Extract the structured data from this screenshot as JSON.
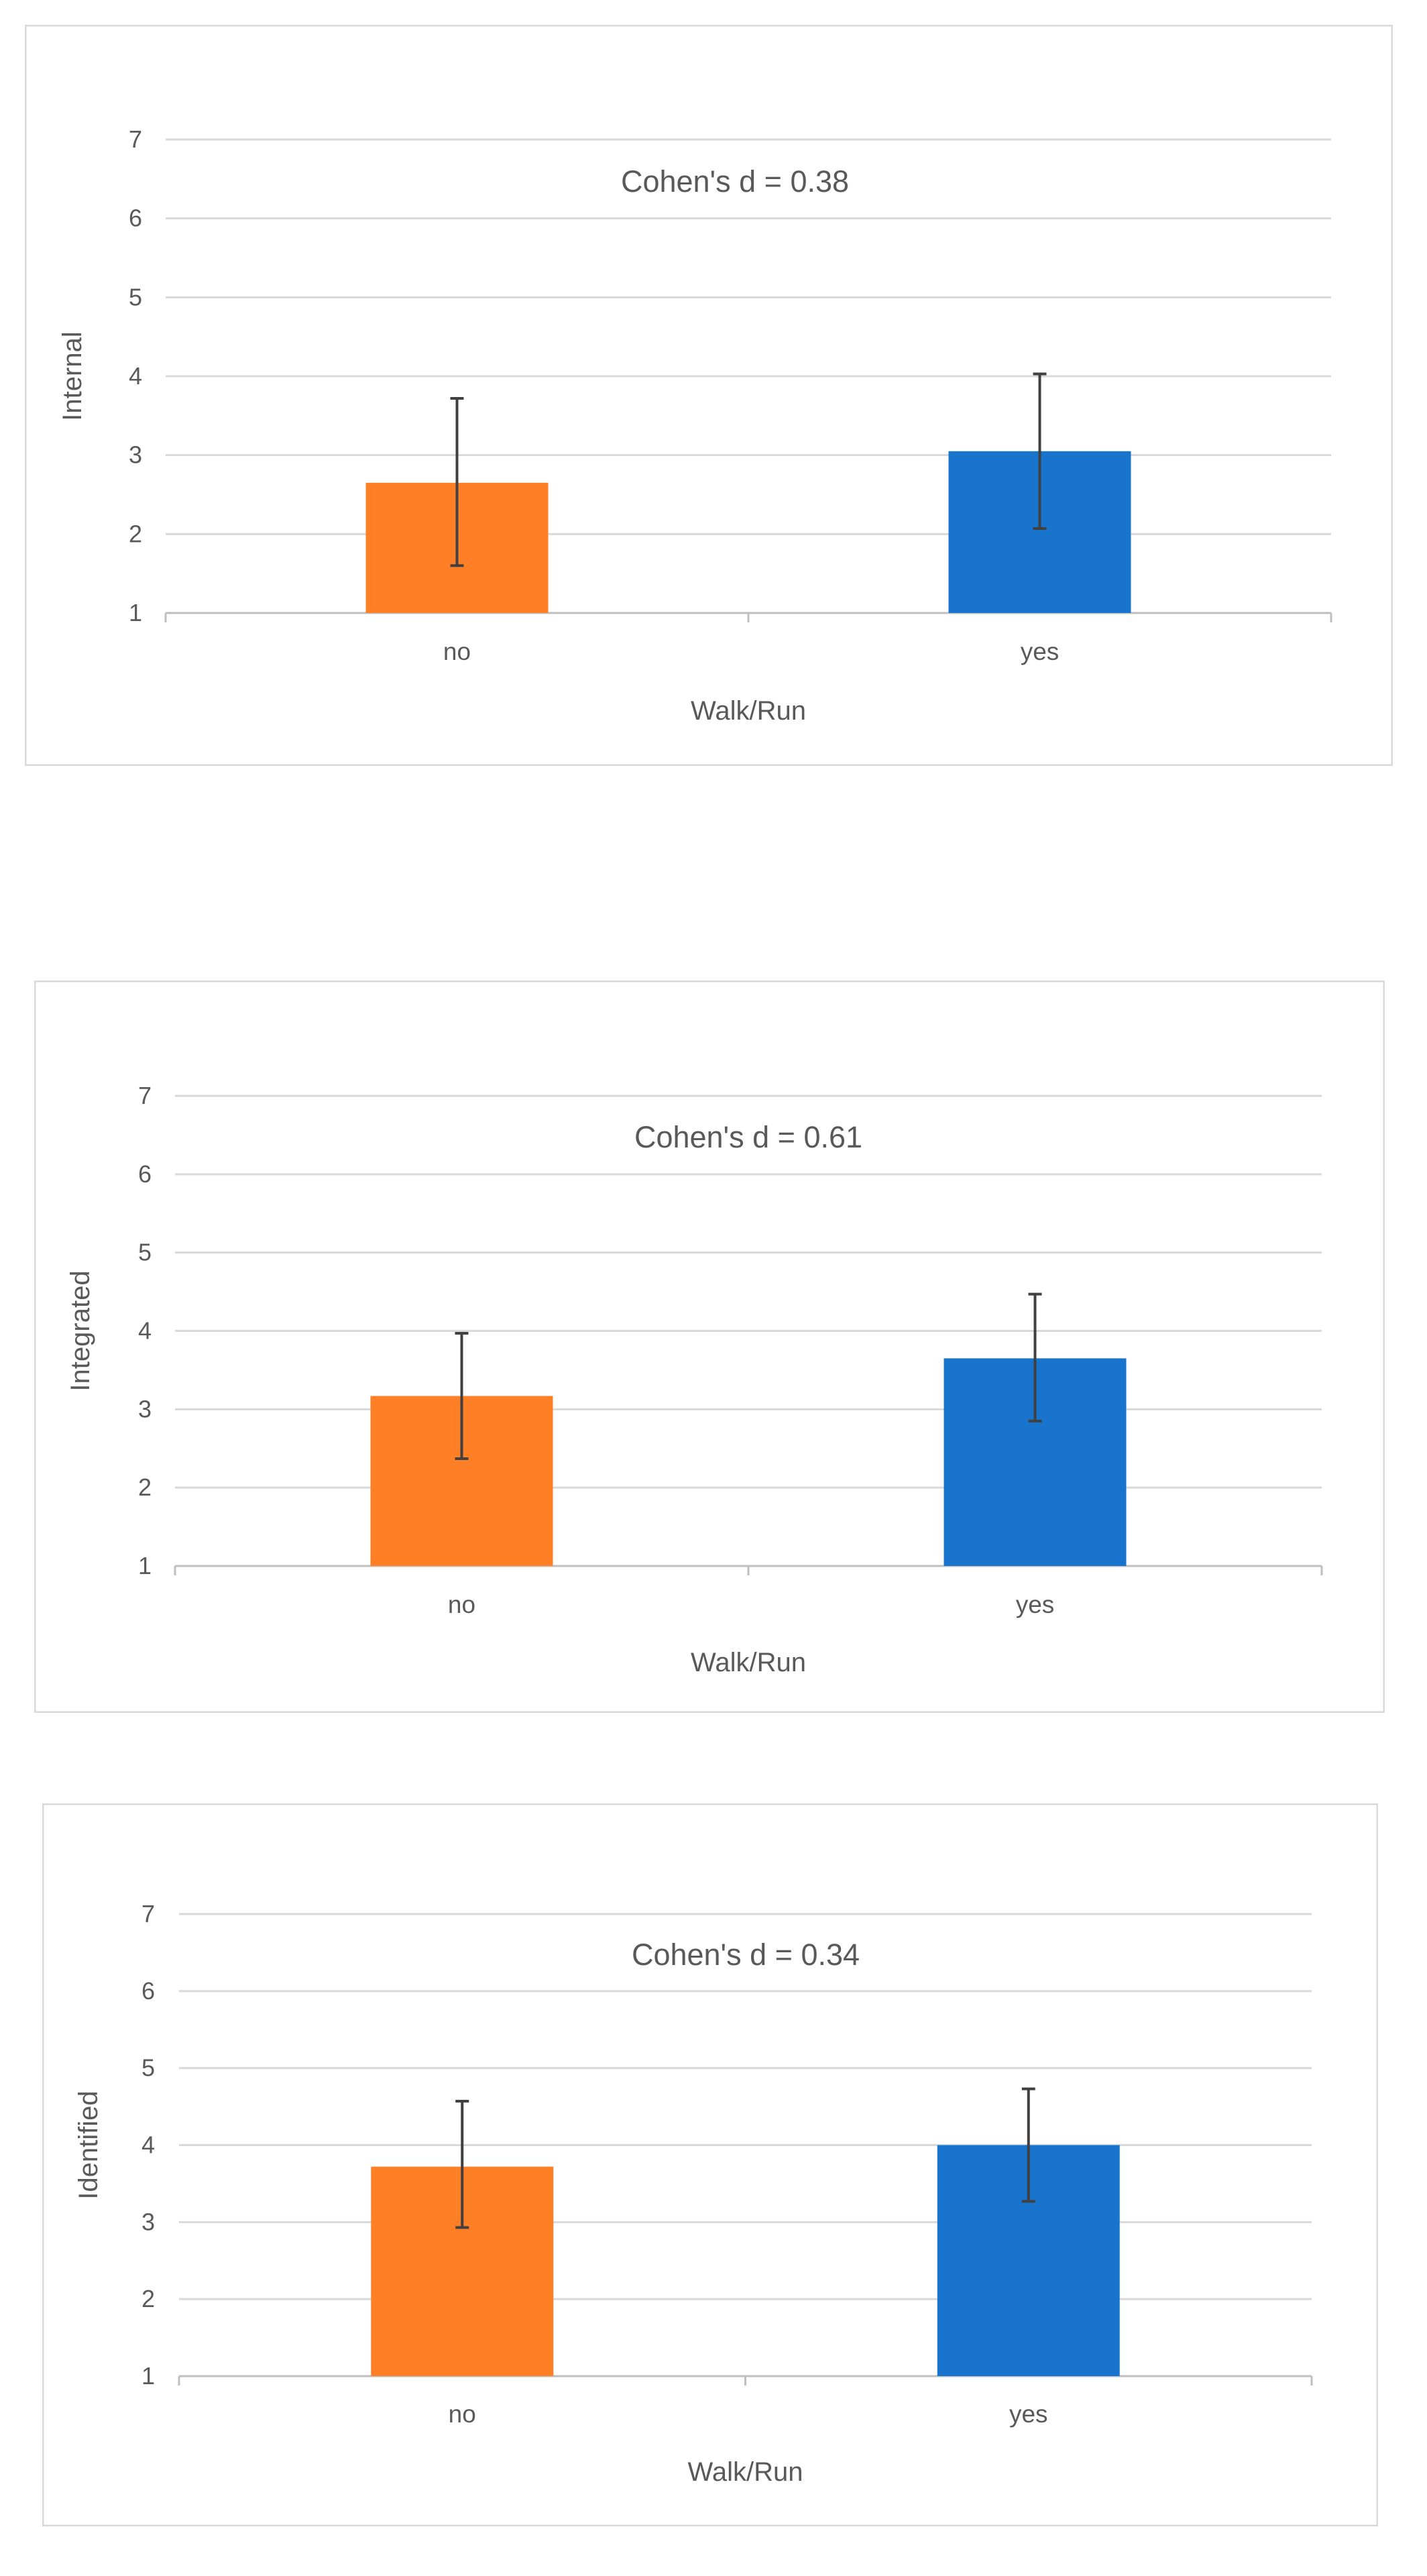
{
  "chart_data": [
    {
      "type": "bar",
      "annotation": "Cohen's d = 0.38",
      "xlabel": "Walk/Run",
      "ylabel": "Internal",
      "categories": [
        "no",
        "yes"
      ],
      "values": [
        2.65,
        3.05
      ],
      "error_low": [
        1.6,
        2.07
      ],
      "error_high": [
        3.72,
        4.03
      ],
      "ylim": [
        1,
        7
      ],
      "yticks": [
        "1",
        "2",
        "3",
        "4",
        "5",
        "6",
        "7"
      ],
      "bar_colors": [
        "#FF7F27",
        "#1874CD"
      ],
      "grid": true
    },
    {
      "type": "bar",
      "annotation": "Cohen's d = 0.61",
      "xlabel": "Walk/Run",
      "ylabel": "Integrated",
      "categories": [
        "no",
        "yes"
      ],
      "values": [
        3.17,
        3.65
      ],
      "error_low": [
        2.37,
        2.85
      ],
      "error_high": [
        3.97,
        4.47
      ],
      "ylim": [
        1,
        7
      ],
      "yticks": [
        "1",
        "2",
        "3",
        "4",
        "5",
        "6",
        "7"
      ],
      "bar_colors": [
        "#FF7F27",
        "#1874CD"
      ],
      "grid": true
    },
    {
      "type": "bar",
      "annotation": "Cohen's d = 0.34",
      "xlabel": "Walk/Run",
      "ylabel": "Identified",
      "categories": [
        "no",
        "yes"
      ],
      "values": [
        3.72,
        4.0
      ],
      "error_low": [
        2.93,
        3.27
      ],
      "error_high": [
        4.57,
        4.73
      ],
      "ylim": [
        1,
        7
      ],
      "yticks": [
        "1",
        "2",
        "3",
        "4",
        "5",
        "6",
        "7"
      ],
      "bar_colors": [
        "#FF7F27",
        "#1874CD"
      ],
      "grid": true
    }
  ]
}
